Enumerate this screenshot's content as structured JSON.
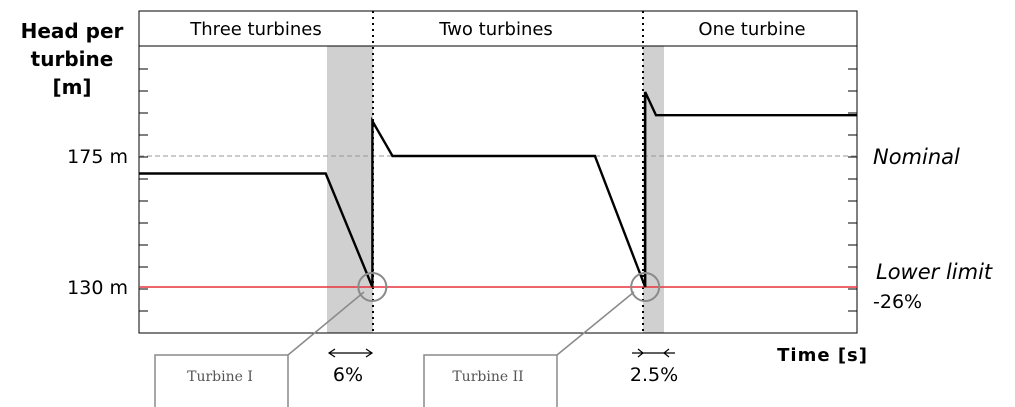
{
  "chart_data": {
    "type": "line",
    "ylabel_lines": [
      "Head per",
      "turbine",
      "[m]"
    ],
    "xlabel": "Time [s]",
    "y_ticks": [
      {
        "value": 130,
        "label": "130 m"
      },
      {
        "value": 175,
        "label": "175 m"
      }
    ],
    "zones": [
      {
        "label": "Three turbines"
      },
      {
        "label": "Two turbines"
      },
      {
        "label": "One turbine"
      }
    ],
    "reference_lines": [
      {
        "name": "Nominal",
        "value": 175,
        "style": "dashed",
        "color": "#999999"
      },
      {
        "name": "Lower limit",
        "value": 130,
        "style": "solid",
        "color": "#e8343b",
        "note": "-26%"
      }
    ],
    "shutdowns": [
      {
        "label": "Turbine I",
        "marker_value": 130,
        "duration_label": "6%"
      },
      {
        "label": "Turbine II",
        "marker_value": 130,
        "duration_label": "2.5%"
      }
    ],
    "series": [
      {
        "points": [
          [
            0,
            169
          ],
          [
            0.26,
            169
          ],
          [
            0.325,
            130
          ],
          [
            0.325,
            187
          ],
          [
            0.353,
            175
          ],
          [
            0.635,
            175
          ],
          [
            0.705,
            130
          ],
          [
            0.705,
            197
          ],
          [
            0.72,
            189
          ],
          [
            1.0,
            189
          ]
        ]
      }
    ],
    "ylim": [
      114,
      230
    ],
    "xlim": [
      0,
      1
    ]
  }
}
